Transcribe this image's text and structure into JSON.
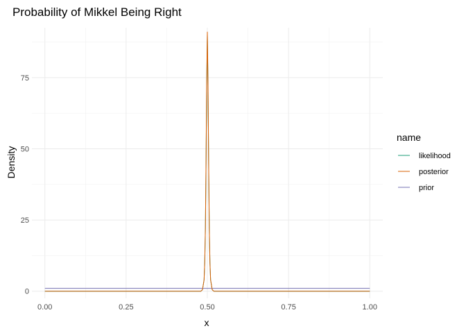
{
  "chart_data": {
    "type": "line",
    "title": "Probability of Mikkel Being Right",
    "xlabel": "x",
    "ylabel": "Density",
    "xlim": [
      -0.04,
      1.04
    ],
    "ylim": [
      -2.5,
      92.5
    ],
    "x_ticks": [
      0.0,
      0.25,
      0.5,
      0.75,
      1.0
    ],
    "x_tick_labels": [
      "0.00",
      "0.25",
      "0.50",
      "0.75",
      "1.00"
    ],
    "y_ticks": [
      0,
      25,
      50,
      75
    ],
    "y_tick_labels": [
      "0",
      "25",
      "50",
      "75"
    ],
    "grid": true,
    "legend": {
      "title": "name",
      "position": "right"
    },
    "series": [
      {
        "name": "likelihood",
        "color": "#1b9e77",
        "x": [
          0,
          0.48,
          0.485,
          0.49,
          0.492,
          0.494,
          0.496,
          0.498,
          0.5,
          0.502,
          0.504,
          0.506,
          0.508,
          0.51,
          0.515,
          0.52,
          1
        ],
        "y": [
          0,
          0,
          0.5,
          4,
          10,
          22,
          45,
          72,
          90,
          72,
          45,
          22,
          10,
          4,
          0.5,
          0,
          0
        ]
      },
      {
        "name": "posterior",
        "color": "#d95f02",
        "x": [
          0,
          0.48,
          0.485,
          0.49,
          0.492,
          0.494,
          0.496,
          0.498,
          0.5,
          0.502,
          0.504,
          0.506,
          0.508,
          0.51,
          0.515,
          0.52,
          1
        ],
        "y": [
          0,
          0,
          0.5,
          4,
          10,
          22,
          46,
          74,
          91,
          74,
          46,
          22,
          10,
          4,
          0.5,
          0,
          0
        ]
      },
      {
        "name": "prior",
        "color": "#7570b3",
        "x": [
          0,
          1
        ],
        "y": [
          1,
          1
        ]
      }
    ]
  }
}
